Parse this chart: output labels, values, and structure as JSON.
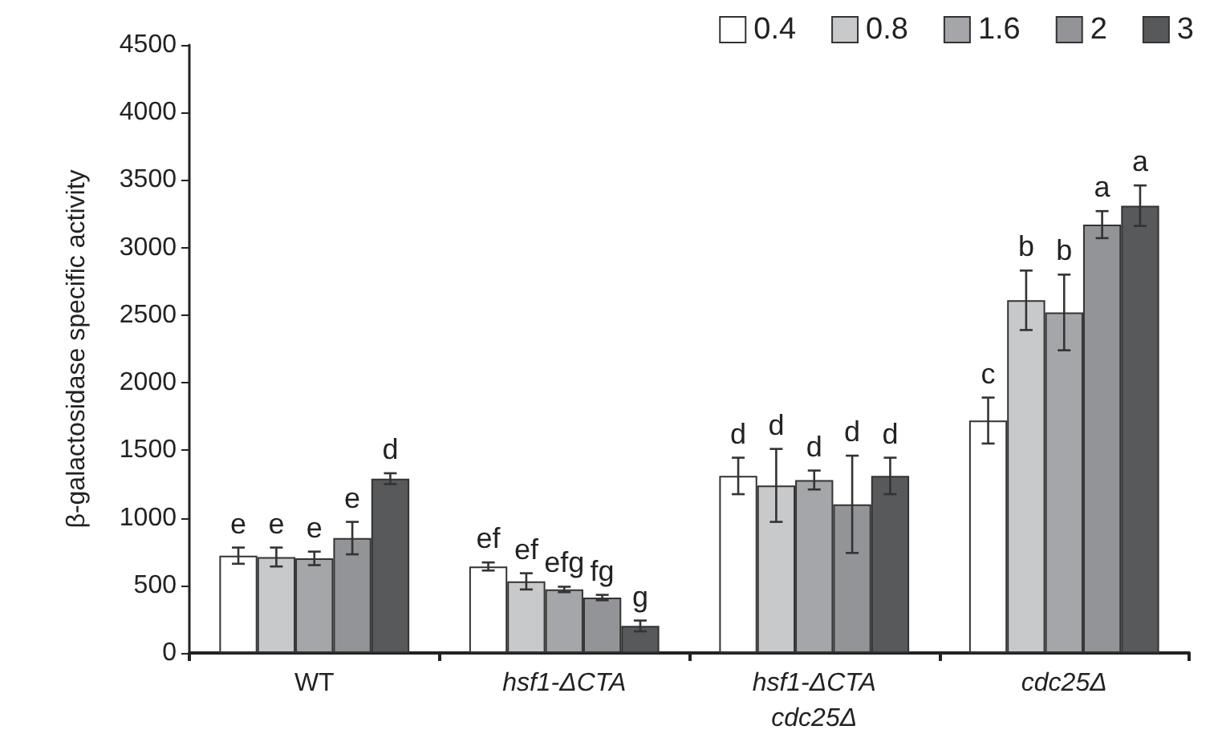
{
  "chart_data": {
    "type": "bar",
    "ylabel": "β-galactosidase specific activity",
    "categories": [
      "WT",
      "hsf1-ΔCTA",
      "hsf1-ΔCTA\ncdc25Δ",
      "cdc25Δ"
    ],
    "series": [
      {
        "name": "0.4",
        "color": "#ffffff",
        "values": [
          720,
          640,
          1310,
          1720
        ],
        "errors": [
          60,
          30,
          135,
          170
        ],
        "value_labels": [
          "e",
          "ef",
          "d",
          "c"
        ]
      },
      {
        "name": "0.8",
        "color": "#c8c9cb",
        "values": [
          710,
          530,
          1240,
          2610
        ],
        "errors": [
          70,
          60,
          270,
          220
        ],
        "value_labels": [
          "e",
          "ef",
          "d",
          "b"
        ]
      },
      {
        "name": "1.6",
        "color": "#a5a6a9",
        "values": [
          700,
          470,
          1280,
          2520
        ],
        "errors": [
          50,
          20,
          70,
          280
        ],
        "value_labels": [
          "e",
          "efg",
          "d",
          "b"
        ]
      },
      {
        "name": "2",
        "color": "#939497",
        "values": [
          850,
          410,
          1100,
          3170
        ],
        "errors": [
          120,
          20,
          360,
          100
        ],
        "value_labels": [
          "e",
          "fg",
          "d",
          "a"
        ]
      },
      {
        "name": "3",
        "color": "#58595b",
        "values": [
          1290,
          200,
          1310,
          3310
        ],
        "errors": [
          40,
          40,
          135,
          150
        ],
        "value_labels": [
          "d",
          "g",
          "d",
          "a"
        ]
      }
    ],
    "ylim": [
      0,
      4500
    ],
    "yticks": [
      0,
      500,
      1000,
      1500,
      2000,
      2500,
      3000,
      3500,
      4000,
      4500
    ],
    "grid": false,
    "legend": "top right"
  }
}
